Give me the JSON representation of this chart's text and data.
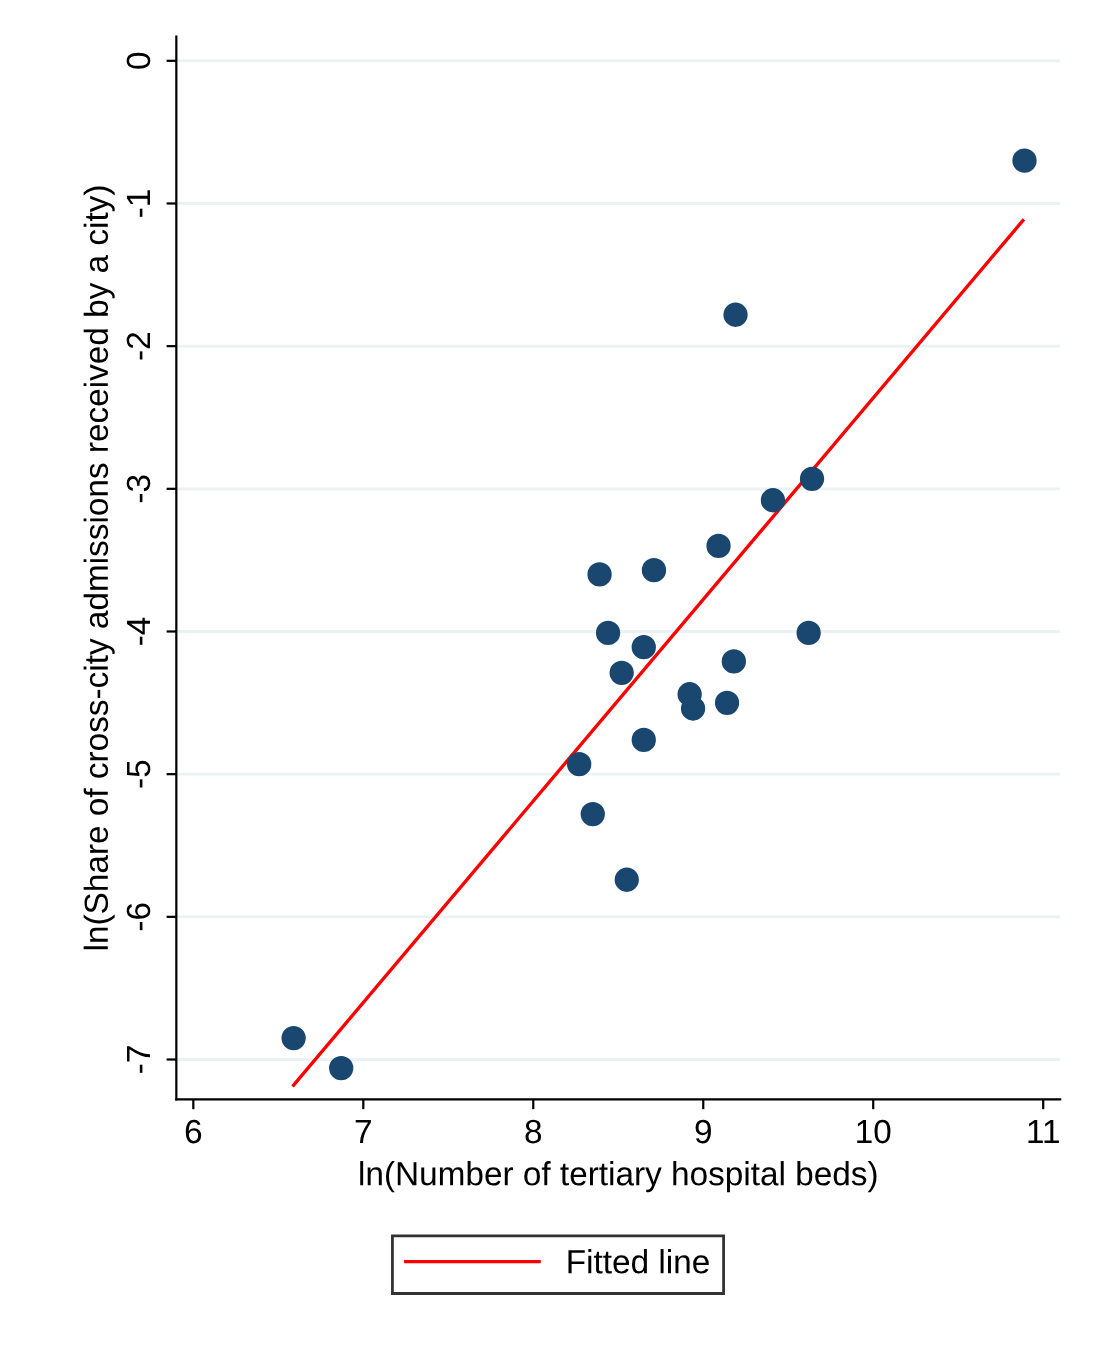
{
  "chart_data": {
    "type": "scatter",
    "xlabel": "ln(Number of tertiary hospital beds)",
    "ylabel": "ln(Share of cross-city admissions received by a city)",
    "xlim": [
      5.9,
      11.1
    ],
    "ylim": [
      -7.28,
      0.17
    ],
    "xticks": [
      6,
      7,
      8,
      9,
      10,
      11
    ],
    "yticks": [
      0,
      -1,
      -2,
      -3,
      -4,
      -5,
      -6,
      -7
    ],
    "grid": "y",
    "legend": "bottom",
    "series": [
      {
        "marker": "circle",
        "color": "#1a476f",
        "x": [
          10.89,
          9.19,
          9.64,
          9.41,
          9.09,
          8.71,
          8.39,
          8.44,
          8.65,
          9.62,
          9.18,
          8.52,
          8.92,
          8.94,
          9.14,
          8.65,
          8.27,
          8.35,
          8.55,
          6.59,
          6.87
        ],
        "values": [
          -0.7,
          -1.78,
          -2.93,
          -3.08,
          -3.4,
          -3.57,
          -3.6,
          -4.01,
          -4.11,
          -4.01,
          -4.21,
          -4.29,
          -4.44,
          -4.54,
          -4.5,
          -4.76,
          -4.93,
          -5.28,
          -5.74,
          -6.85,
          -7.06
        ]
      },
      {
        "type": "line",
        "marker": "none",
        "name": "Fitted line",
        "color": "#ff0000",
        "x": [
          6.59,
          10.88
        ],
        "values": [
          -7.18,
          -1.12
        ]
      }
    ]
  }
}
